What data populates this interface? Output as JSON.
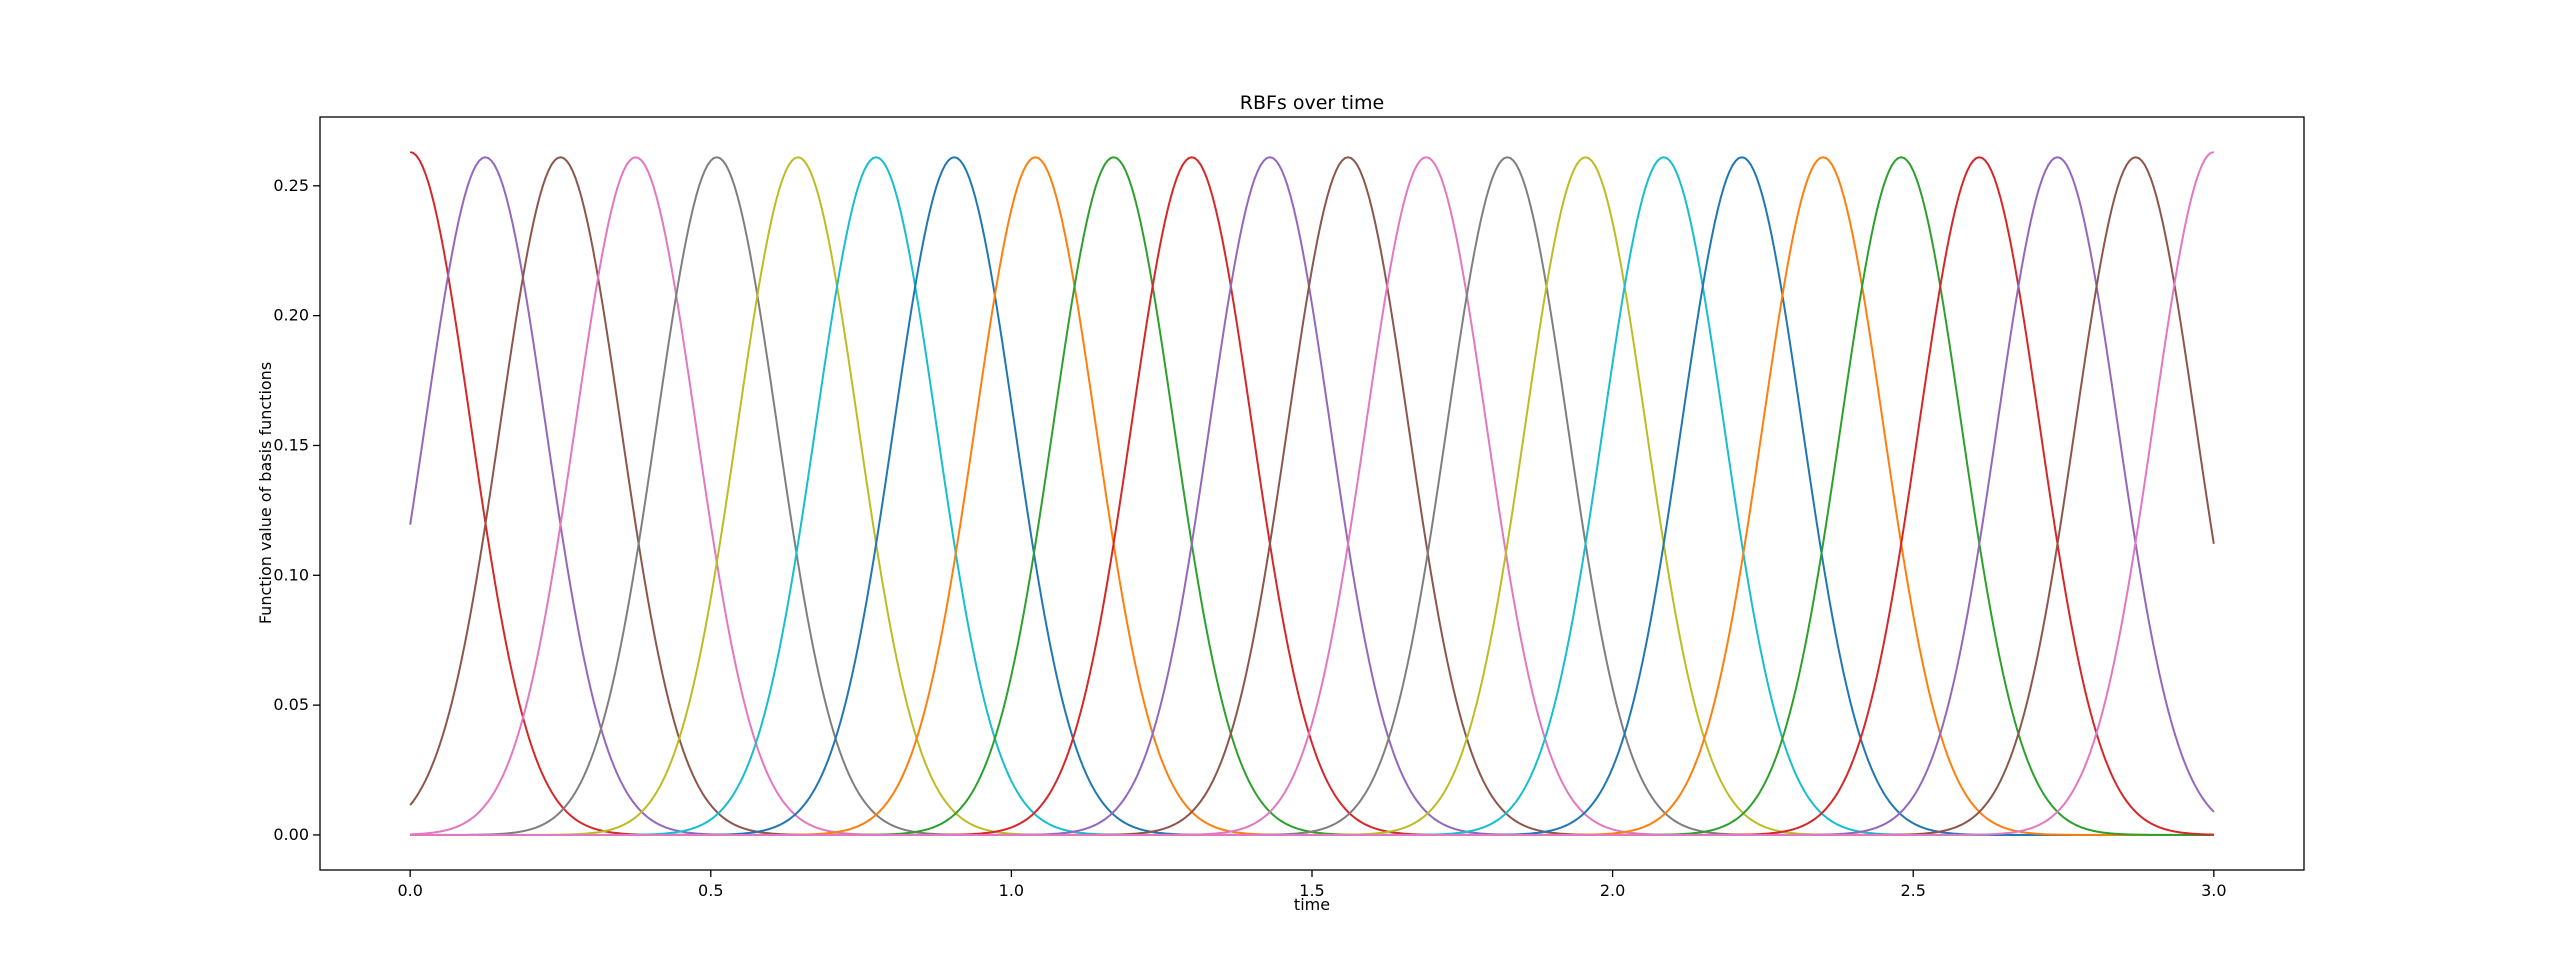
{
  "chart_data": {
    "type": "line",
    "title": "RBFs over time",
    "xlabel": "time",
    "ylabel": "Function value of basis functions",
    "xlim": [
      -0.15,
      3.15
    ],
    "ylim": [
      -0.0135,
      0.2765
    ],
    "x_ticks": [
      0.0,
      0.5,
      1.0,
      1.5,
      2.0,
      2.5,
      3.0
    ],
    "x_tick_labels": [
      "0.0",
      "0.5",
      "1.0",
      "1.5",
      "2.0",
      "2.5",
      "3.0"
    ],
    "y_ticks": [
      0.0,
      0.05,
      0.1,
      0.15,
      0.2,
      0.25
    ],
    "y_tick_labels": [
      "0.00",
      "0.05",
      "0.10",
      "0.15",
      "0.20",
      "0.25"
    ],
    "grid": false,
    "legend": "none",
    "x_range": [
      0.0,
      3.0
    ],
    "series": [
      {
        "center": 0.0,
        "peak": 0.263,
        "sigma": 0.1,
        "color": "#d62728"
      },
      {
        "center": 0.125,
        "peak": 0.261,
        "sigma": 0.1,
        "color": "#9467bd"
      },
      {
        "center": 0.25,
        "peak": 0.261,
        "sigma": 0.1,
        "color": "#8c564b"
      },
      {
        "center": 0.375,
        "peak": 0.261,
        "sigma": 0.1,
        "color": "#e377c2"
      },
      {
        "center": 0.51,
        "peak": 0.261,
        "sigma": 0.1,
        "color": "#7f7f7f"
      },
      {
        "center": 0.645,
        "peak": 0.261,
        "sigma": 0.1,
        "color": "#bcbd22"
      },
      {
        "center": 0.775,
        "peak": 0.261,
        "sigma": 0.1,
        "color": "#17becf"
      },
      {
        "center": 0.905,
        "peak": 0.261,
        "sigma": 0.1,
        "color": "#1f77b4"
      },
      {
        "center": 1.04,
        "peak": 0.261,
        "sigma": 0.1,
        "color": "#ff7f0e"
      },
      {
        "center": 1.17,
        "peak": 0.261,
        "sigma": 0.1,
        "color": "#2ca02c"
      },
      {
        "center": 1.3,
        "peak": 0.261,
        "sigma": 0.1,
        "color": "#d62728"
      },
      {
        "center": 1.43,
        "peak": 0.261,
        "sigma": 0.1,
        "color": "#9467bd"
      },
      {
        "center": 1.56,
        "peak": 0.261,
        "sigma": 0.1,
        "color": "#8c564b"
      },
      {
        "center": 1.69,
        "peak": 0.261,
        "sigma": 0.1,
        "color": "#e377c2"
      },
      {
        "center": 1.825,
        "peak": 0.261,
        "sigma": 0.1,
        "color": "#7f7f7f"
      },
      {
        "center": 1.955,
        "peak": 0.261,
        "sigma": 0.1,
        "color": "#bcbd22"
      },
      {
        "center": 2.085,
        "peak": 0.261,
        "sigma": 0.1,
        "color": "#17becf"
      },
      {
        "center": 2.215,
        "peak": 0.261,
        "sigma": 0.1,
        "color": "#1f77b4"
      },
      {
        "center": 2.35,
        "peak": 0.261,
        "sigma": 0.1,
        "color": "#ff7f0e"
      },
      {
        "center": 2.48,
        "peak": 0.261,
        "sigma": 0.1,
        "color": "#2ca02c"
      },
      {
        "center": 2.61,
        "peak": 0.261,
        "sigma": 0.1,
        "color": "#d62728"
      },
      {
        "center": 2.74,
        "peak": 0.261,
        "sigma": 0.1,
        "color": "#9467bd"
      },
      {
        "center": 2.87,
        "peak": 0.261,
        "sigma": 0.1,
        "color": "#8c564b"
      },
      {
        "center": 3.0,
        "peak": 0.263,
        "sigma": 0.1,
        "color": "#e377c2"
      }
    ]
  }
}
